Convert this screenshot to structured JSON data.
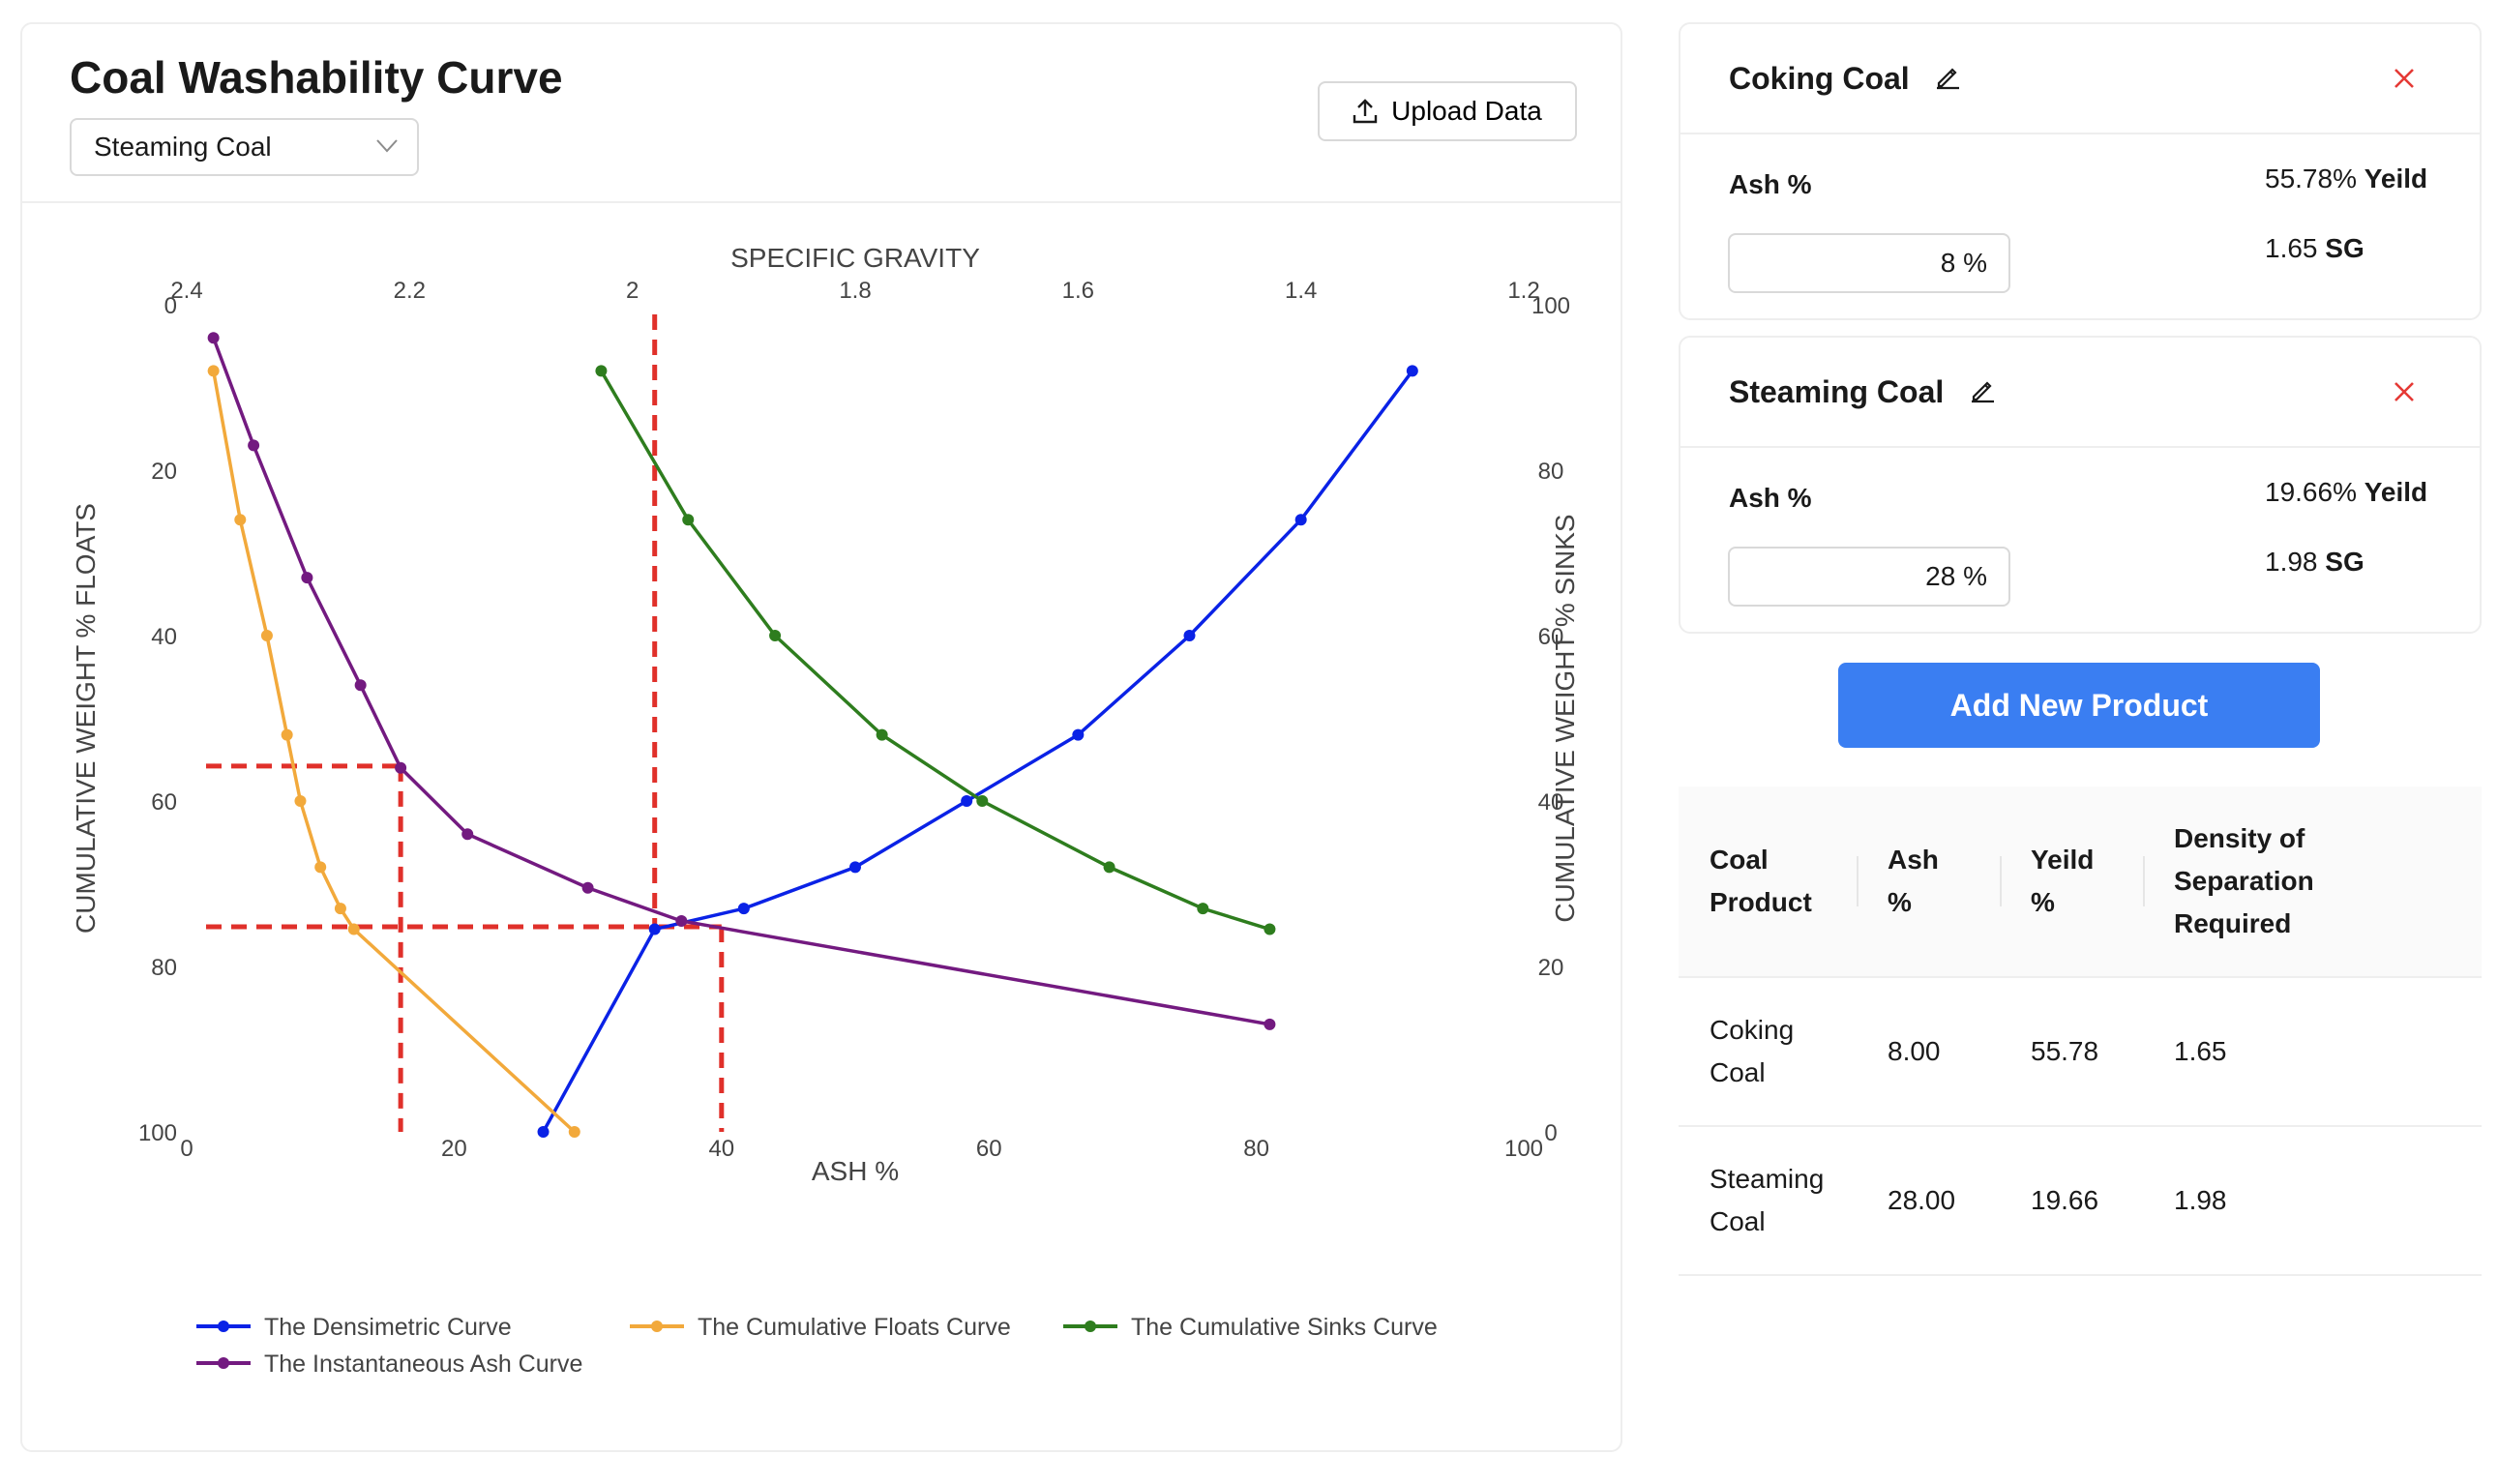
{
  "header": {
    "title": "Coal Washability Curve",
    "selected_product": "Steaming Coal",
    "upload_label": "Upload Data"
  },
  "products": [
    {
      "name": "Coking Coal",
      "ash_label": "Ash %",
      "ash_input": "8 %",
      "yield_value": "55.78%",
      "yield_label": "Yeild",
      "sg_value": "1.65",
      "sg_label": "SG"
    },
    {
      "name": "Steaming Coal",
      "ash_label": "Ash %",
      "ash_input": "28 %",
      "yield_value": "19.66%",
      "yield_label": "Yeild",
      "sg_value": "1.98",
      "sg_label": "SG"
    }
  ],
  "add_button_label": "Add New Product",
  "table": {
    "headers": [
      "Coal Product",
      "Ash %",
      "Yeild %",
      "Density of Separation Required"
    ],
    "rows": [
      [
        "Coking Coal",
        "8.00",
        "55.78",
        "1.65"
      ],
      [
        "Steaming Coal",
        "28.00",
        "19.66",
        "1.98"
      ]
    ]
  },
  "colors": {
    "accent": "#3a7ef2",
    "close": "#e53935",
    "densimetric": "#0a22e6",
    "floats": "#f2a93b",
    "sinks": "#2e7d1e",
    "instantaneous": "#731a80",
    "guide": "#e0302a"
  },
  "icons": [
    "chevron-down-icon",
    "upload-icon",
    "pencil-icon",
    "close-icon"
  ],
  "chart_data": {
    "type": "line",
    "title": "",
    "xlabel": "ASH %",
    "x2label": "SPECIFIC GRAVITY",
    "ylabel": "CUMULATIVE WEIGHT % FLOATS",
    "y2label": "CUMULATIVE WEIGHT % SINKS",
    "xlim": [
      0,
      100
    ],
    "x2lim": [
      2.4,
      1.2
    ],
    "ylim": [
      0,
      100
    ],
    "y_reversed": true,
    "y2lim": [
      0,
      100
    ],
    "x_ticks": [
      0,
      20,
      40,
      60,
      80,
      100
    ],
    "x2_ticks": [
      2.4,
      2.2,
      2,
      1.8,
      1.6,
      1.4,
      1.2
    ],
    "y_ticks": [
      0,
      20,
      40,
      60,
      80,
      100
    ],
    "y2_ticks": [
      0,
      20,
      40,
      60,
      80,
      100
    ],
    "grid": false,
    "legend_position": "bottom",
    "series": [
      {
        "name": "The Densimetric Curve",
        "axis": "sg_vs_floats",
        "x": [
          2.08,
          1.98,
          1.9,
          1.8,
          1.7,
          1.6,
          1.5,
          1.4,
          1.3
        ],
        "y": [
          100,
          75.5,
          73,
          68,
          60,
          52,
          40,
          26,
          8
        ]
      },
      {
        "name": "The Cumulative Floats Curve",
        "axis": "ash_vs_floats",
        "x": [
          2,
          4,
          6,
          7.5,
          8.5,
          10,
          11.5,
          12.5,
          29
        ],
        "y": [
          8,
          26,
          40,
          52,
          60,
          68,
          73,
          75.5,
          100
        ]
      },
      {
        "name": "The Cumulative Sinks Curve",
        "axis": "ash_vs_sinks",
        "x": [
          31,
          37.5,
          44,
          52,
          59.5,
          69,
          76,
          81
        ],
        "y": [
          92,
          74,
          60,
          48,
          40,
          32,
          27,
          24.5
        ]
      },
      {
        "name": "The Instantaneous Ash Curve",
        "axis": "ash_vs_floats",
        "x": [
          2,
          5,
          9,
          13,
          16,
          21,
          30,
          37,
          81
        ],
        "y": [
          4,
          17,
          33,
          46,
          56,
          64,
          70.5,
          74.5,
          87
        ]
      }
    ],
    "guides": [
      {
        "ash": 16,
        "floats": 55.78,
        "sg": 1.65
      },
      {
        "ash": 40,
        "floats": 75.2,
        "sg": 1.98
      }
    ]
  }
}
